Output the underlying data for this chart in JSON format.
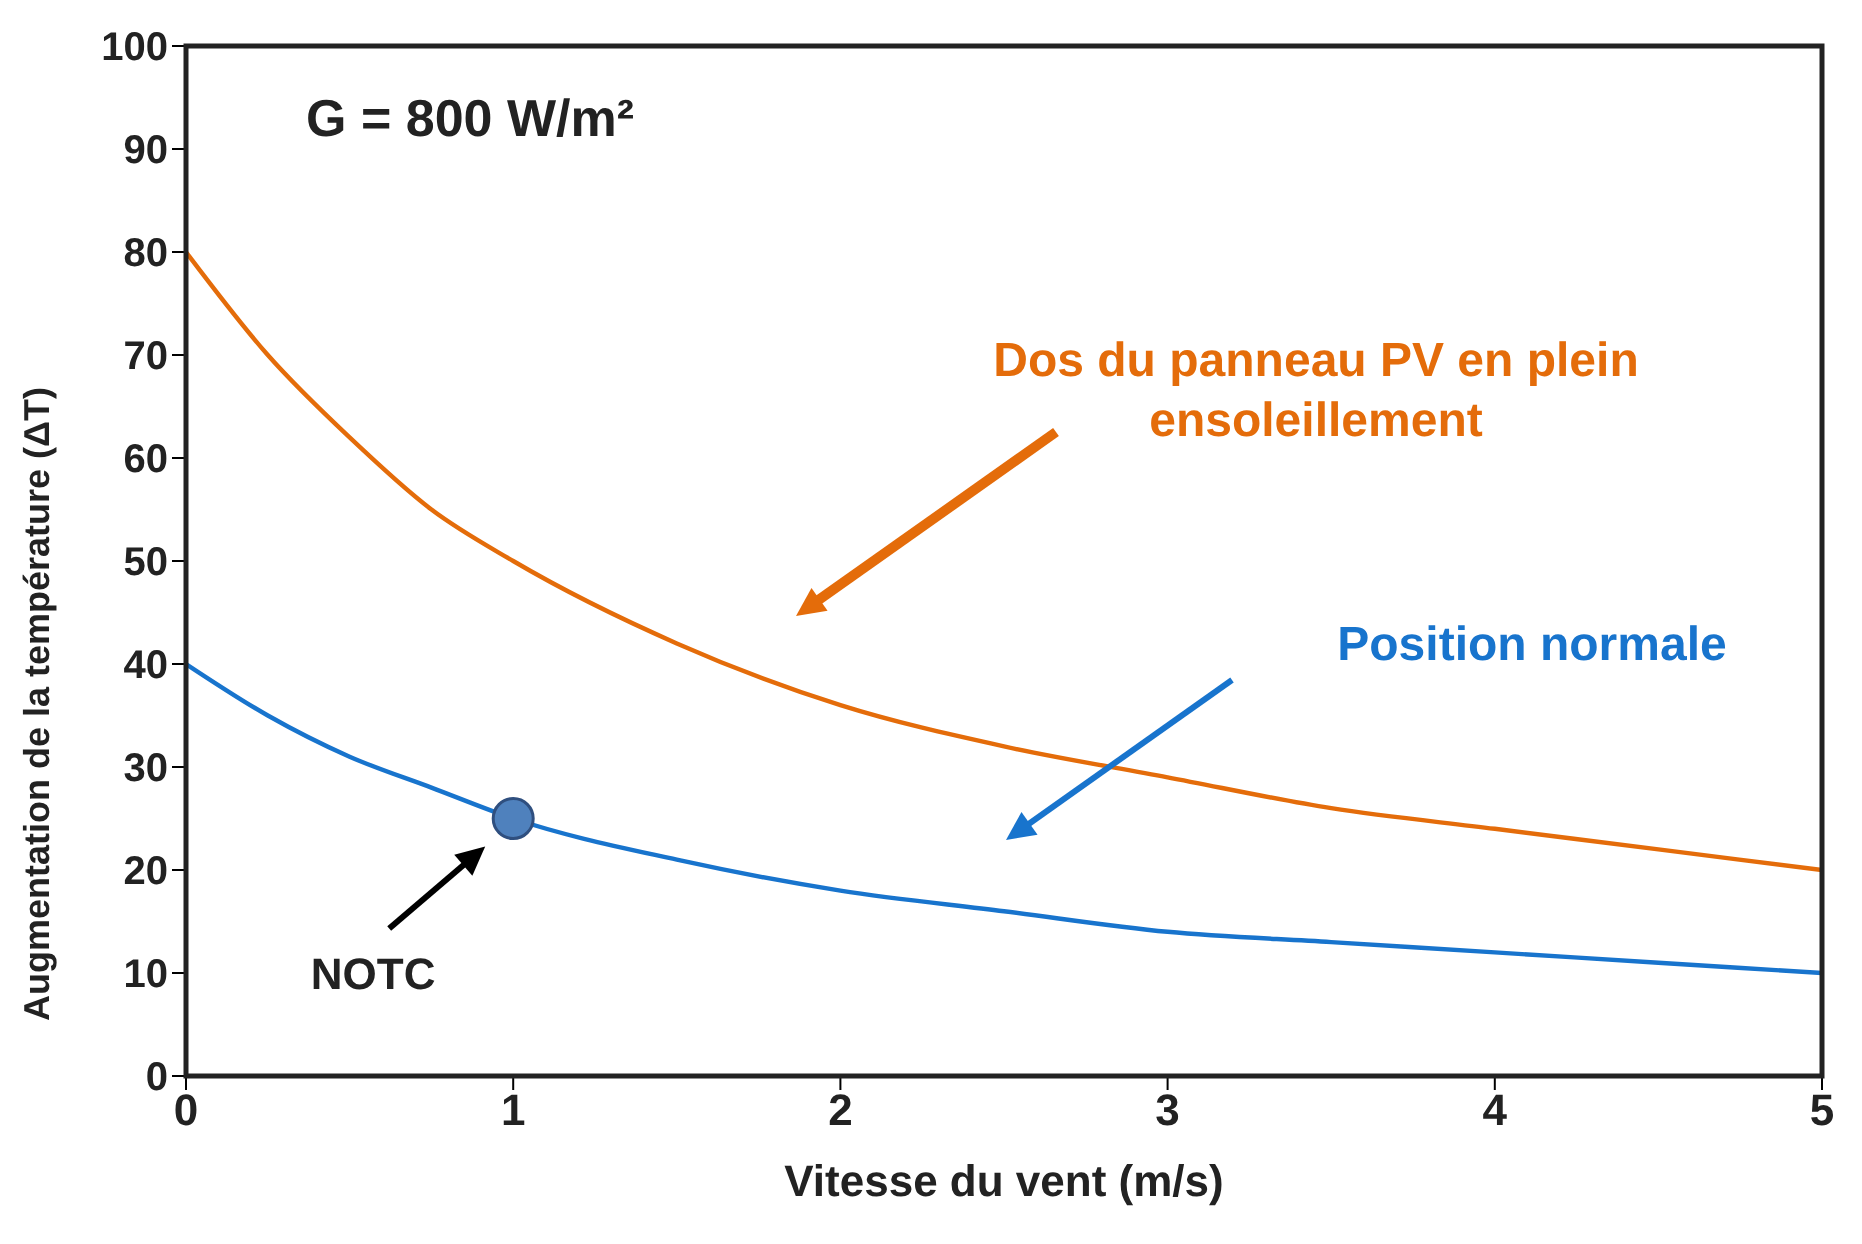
{
  "chart_data": {
    "type": "line",
    "xlabel": "Vitesse du vent (m/s)",
    "ylabel": "Augmentation de la température  (ΔT)",
    "annotations": [
      "G = 800 W/m²",
      "NOTC"
    ],
    "x": [
      0,
      0.25,
      0.5,
      0.75,
      1,
      1.5,
      2,
      2.5,
      3,
      3.5,
      4,
      4.5,
      5
    ],
    "series": [
      {
        "name": "Dos du panneau PV en plein ensoleillement",
        "color": "#e46c0a",
        "values": [
          80,
          70,
          62,
          55,
          50,
          42,
          36,
          32,
          29,
          26,
          24,
          22,
          20
        ]
      },
      {
        "name": "Position normale",
        "color": "#1874cd",
        "values": [
          40,
          35,
          31,
          28,
          25,
          21,
          18,
          16,
          14,
          13,
          12,
          11,
          10
        ]
      },
      {
        "type": "scatter",
        "marker": "circle",
        "color": "#4f81bd",
        "x": [
          1
        ],
        "values": [
          25
        ]
      }
    ],
    "xlim": [
      0,
      5
    ],
    "xticks": [
      0,
      1,
      2,
      3,
      4,
      5
    ],
    "ylim": [
      0,
      100
    ],
    "yticks": [
      0,
      10,
      20,
      30,
      40,
      50,
      60,
      70,
      80,
      90,
      100
    ],
    "grid": false,
    "legend": false,
    "marker": "none",
    "line_style": "solid"
  }
}
